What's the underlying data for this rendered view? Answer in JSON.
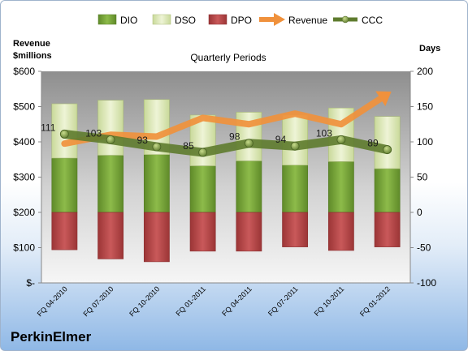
{
  "company": "PerkinElmer",
  "chart_data": {
    "type": "bar",
    "title": "Quarterly Periods",
    "ylabel_left": "Revenue\n$millions",
    "ylabel_right": "Days",
    "categories": [
      "FQ 04-2010",
      "FQ 07-2010",
      "FQ 10-2010",
      "FQ 01-2011",
      "FQ 04-2011",
      "FQ 07-2011",
      "FQ 10-2011",
      "FQ 01-2012"
    ],
    "ylim_left": [
      0,
      600
    ],
    "ylim_right": [
      -100,
      200
    ],
    "yticks_left": [
      "$-",
      "$100",
      "$200",
      "$300",
      "$400",
      "$500",
      "$600"
    ],
    "yticks_right": [
      "-100",
      "-50",
      "0",
      "50",
      "100",
      "150",
      "200"
    ],
    "legend_position": "top",
    "series": [
      {
        "name": "DIO",
        "axis": "right",
        "kind": "stacked-bar",
        "color": "#76a23a",
        "values": [
          77,
          81,
          82,
          66,
          73,
          67,
          72,
          62
        ]
      },
      {
        "name": "DSO",
        "axis": "right",
        "kind": "stacked-bar",
        "color": "#dde8b8",
        "values": [
          77,
          78,
          78,
          72,
          69,
          71,
          76,
          74
        ]
      },
      {
        "name": "DPO",
        "axis": "right",
        "kind": "stacked-bar",
        "color": "#b94a4b",
        "values": [
          -53,
          -66,
          -70,
          -55,
          -55,
          -49,
          -54,
          -49
        ]
      },
      {
        "name": "Revenue",
        "axis": "left",
        "kind": "line",
        "color": "#f0913c",
        "values": [
          395,
          420,
          415,
          468,
          450,
          480,
          450,
          535
        ]
      },
      {
        "name": "CCC",
        "axis": "right",
        "kind": "line",
        "color": "#5e7b2e",
        "values": [
          111,
          103,
          93,
          85,
          98,
          94,
          103,
          89
        ]
      }
    ],
    "data_labels": [
      "111",
      "103",
      "93",
      "85",
      "98",
      "94",
      "103",
      "89"
    ],
    "grid": false
  }
}
